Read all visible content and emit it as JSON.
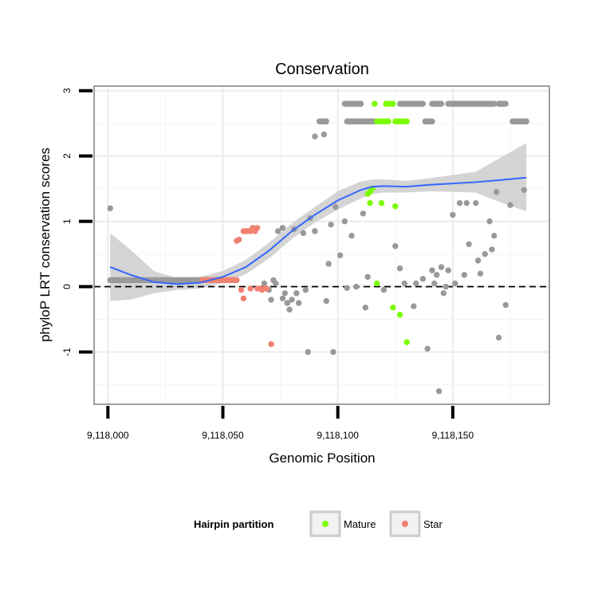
{
  "chart_data": {
    "type": "scatter",
    "title": "Conservation",
    "xlabel": "Genomic Position",
    "ylabel": "phyloP LRT conservation scores",
    "xlim": [
      117994,
      118192
    ],
    "ylim": [
      -1.8,
      3.07
    ],
    "x_ticks": [
      {
        "value": 118000,
        "label": "9,118,000"
      },
      {
        "value": 118050,
        "label": "9,118,050"
      },
      {
        "value": 118100,
        "label": "9,118,100"
      },
      {
        "value": 118150,
        "label": "9,118,150"
      }
    ],
    "y_ticks": [
      {
        "value": -1,
        "label": "-1"
      },
      {
        "value": 0,
        "label": "0"
      },
      {
        "value": 1,
        "label": "1"
      },
      {
        "value": 2,
        "label": "2"
      },
      {
        "value": 3,
        "label": "3"
      }
    ],
    "x_minor_ticks": [
      118025,
      118075,
      118125,
      118175
    ],
    "y_minor_ticks": [
      -1.5,
      -0.5,
      0.5,
      1.5,
      2.5
    ],
    "hline": {
      "y": 0,
      "style": "dashed"
    },
    "grid": true,
    "legend": {
      "title": "Hairpin partition",
      "position": "bottom",
      "entries": [
        {
          "label": "Mature",
          "color": "#7CFC00"
        },
        {
          "label": "Star",
          "color": "#F08070"
        }
      ]
    },
    "colors": {
      "other": "#999999",
      "mature": "#7CFC00",
      "star": "#F08070",
      "smooth": "#3366FF",
      "ribbon": "#CCCCCC"
    },
    "series": [
      {
        "name": "Other",
        "color": "#999999",
        "dense_runs": [
          {
            "x_start": 118001,
            "x_end": 118050,
            "y": 0.1
          },
          {
            "x_start": 118092,
            "x_end": 118095,
            "y": 2.53
          },
          {
            "x_start": 118103,
            "x_end": 118110,
            "y": 2.8
          },
          {
            "x_start": 118104,
            "x_end": 118116,
            "y": 2.53
          },
          {
            "x_start": 118127,
            "x_end": 118137,
            "y": 2.8
          },
          {
            "x_start": 118138,
            "x_end": 118141,
            "y": 2.53
          },
          {
            "x_start": 118141,
            "x_end": 118145,
            "y": 2.8
          },
          {
            "x_start": 118148,
            "x_end": 118157,
            "y": 2.8
          },
          {
            "x_start": 118158,
            "x_end": 118168,
            "y": 2.8
          },
          {
            "x_start": 118170,
            "x_end": 118173,
            "y": 2.8
          },
          {
            "x_start": 118176,
            "x_end": 118182,
            "y": 2.53
          }
        ],
        "points": [
          [
            118001,
            1.2
          ],
          [
            118068,
            0.05
          ],
          [
            118070,
            -0.05
          ],
          [
            118071,
            -0.2
          ],
          [
            118072,
            0.1
          ],
          [
            118073,
            0.05
          ],
          [
            118074,
            0.85
          ],
          [
            118076,
            0.9
          ],
          [
            118076,
            -0.18
          ],
          [
            118077,
            -0.1
          ],
          [
            118078,
            -0.25
          ],
          [
            118079,
            -0.35
          ],
          [
            118080,
            -0.2
          ],
          [
            118081,
            0.88
          ],
          [
            118082,
            -0.1
          ],
          [
            118083,
            -0.25
          ],
          [
            118085,
            0.82
          ],
          [
            118086,
            -0.05
          ],
          [
            118087,
            -1.0
          ],
          [
            118088,
            1.05
          ],
          [
            118090,
            0.85
          ],
          [
            118090,
            2.3
          ],
          [
            118094,
            2.33
          ],
          [
            118095,
            -0.22
          ],
          [
            118096,
            0.35
          ],
          [
            118097,
            0.95
          ],
          [
            118098,
            -1.0
          ],
          [
            118099,
            1.22
          ],
          [
            118101,
            0.48
          ],
          [
            118103,
            1.0
          ],
          [
            118104,
            -0.02
          ],
          [
            118106,
            0.78
          ],
          [
            118108,
            0.0
          ],
          [
            118111,
            1.12
          ],
          [
            118112,
            -0.32
          ],
          [
            118113,
            0.15
          ],
          [
            118120,
            -0.05
          ],
          [
            118125,
            0.62
          ],
          [
            118127,
            0.28
          ],
          [
            118129,
            0.05
          ],
          [
            118133,
            -0.3
          ],
          [
            118134,
            0.05
          ],
          [
            118137,
            0.12
          ],
          [
            118139,
            -0.95
          ],
          [
            118141,
            0.25
          ],
          [
            118142,
            0.05
          ],
          [
            118143,
            0.18
          ],
          [
            118144,
            -1.6
          ],
          [
            118145,
            0.3
          ],
          [
            118146,
            -0.1
          ],
          [
            118147,
            0.0
          ],
          [
            118148,
            0.25
          ],
          [
            118150,
            1.1
          ],
          [
            118151,
            0.05
          ],
          [
            118153,
            1.28
          ],
          [
            118155,
            0.18
          ],
          [
            118156,
            1.28
          ],
          [
            118157,
            0.65
          ],
          [
            118160,
            1.28
          ],
          [
            118161,
            0.4
          ],
          [
            118162,
            0.2
          ],
          [
            118164,
            0.5
          ],
          [
            118166,
            1.0
          ],
          [
            118167,
            0.57
          ],
          [
            118168,
            0.78
          ],
          [
            118169,
            1.45
          ],
          [
            118170,
            -0.78
          ],
          [
            118173,
            -0.28
          ],
          [
            118175,
            1.25
          ],
          [
            118181,
            1.48
          ]
        ]
      },
      {
        "name": "Mature",
        "color": "#7CFC00",
        "points": [
          [
            118116,
            2.8
          ],
          [
            118121,
            2.8
          ],
          [
            118122,
            2.8
          ],
          [
            118123,
            2.8
          ],
          [
            118124,
            2.8
          ],
          [
            118117,
            2.53
          ],
          [
            118118,
            2.53
          ],
          [
            118119,
            2.53
          ],
          [
            118120,
            2.53
          ],
          [
            118121,
            2.53
          ],
          [
            118122,
            2.53
          ],
          [
            118125,
            2.53
          ],
          [
            118126,
            2.53
          ],
          [
            118127,
            2.53
          ],
          [
            118128,
            2.53
          ],
          [
            118129,
            2.53
          ],
          [
            118130,
            2.53
          ],
          [
            118113,
            1.42
          ],
          [
            118114,
            1.45
          ],
          [
            118115,
            1.5
          ],
          [
            118114,
            1.28
          ],
          [
            118119,
            1.28
          ],
          [
            118125,
            1.23
          ],
          [
            118117,
            0.05
          ],
          [
            118124,
            -0.32
          ],
          [
            118127,
            -0.43
          ],
          [
            118130,
            -0.85
          ]
        ]
      },
      {
        "name": "Star",
        "color": "#F08070",
        "dense_runs": [
          {
            "x_start": 118041,
            "x_end": 118056,
            "y": 0.1
          }
        ],
        "points": [
          [
            118056,
            0.7
          ],
          [
            118057,
            0.72
          ],
          [
            118059,
            0.85
          ],
          [
            118060,
            0.85
          ],
          [
            118061,
            0.85
          ],
          [
            118062,
            0.85
          ],
          [
            118063,
            0.9
          ],
          [
            118064,
            0.85
          ],
          [
            118065,
            0.9
          ],
          [
            118058,
            -0.05
          ],
          [
            118059,
            -0.18
          ],
          [
            118062,
            -0.03
          ],
          [
            118065,
            -0.03
          ],
          [
            118066,
            -0.03
          ],
          [
            118067,
            -0.05
          ],
          [
            118068,
            -0.03
          ],
          [
            118069,
            -0.03
          ],
          [
            118071,
            -0.88
          ]
        ]
      }
    ],
    "smooth_line": {
      "x": [
        118001,
        118010,
        118020,
        118030,
        118040,
        118050,
        118060,
        118070,
        118080,
        118090,
        118100,
        118110,
        118115,
        118120,
        118130,
        118140,
        118150,
        118160,
        118170,
        118182
      ],
      "y": [
        0.3,
        0.18,
        0.07,
        0.04,
        0.06,
        0.15,
        0.3,
        0.55,
        0.85,
        1.1,
        1.32,
        1.48,
        1.53,
        1.54,
        1.53,
        1.56,
        1.58,
        1.6,
        1.63,
        1.67
      ],
      "se_lower": [
        -0.22,
        -0.2,
        -0.1,
        -0.05,
        -0.03,
        0.06,
        0.19,
        0.43,
        0.73,
        0.98,
        1.18,
        1.35,
        1.42,
        1.44,
        1.44,
        1.46,
        1.45,
        1.44,
        1.3,
        1.15
      ],
      "se_upper": [
        0.82,
        0.56,
        0.24,
        0.13,
        0.15,
        0.24,
        0.41,
        0.67,
        0.97,
        1.22,
        1.46,
        1.61,
        1.64,
        1.64,
        1.62,
        1.66,
        1.71,
        1.76,
        1.96,
        2.2
      ]
    }
  }
}
